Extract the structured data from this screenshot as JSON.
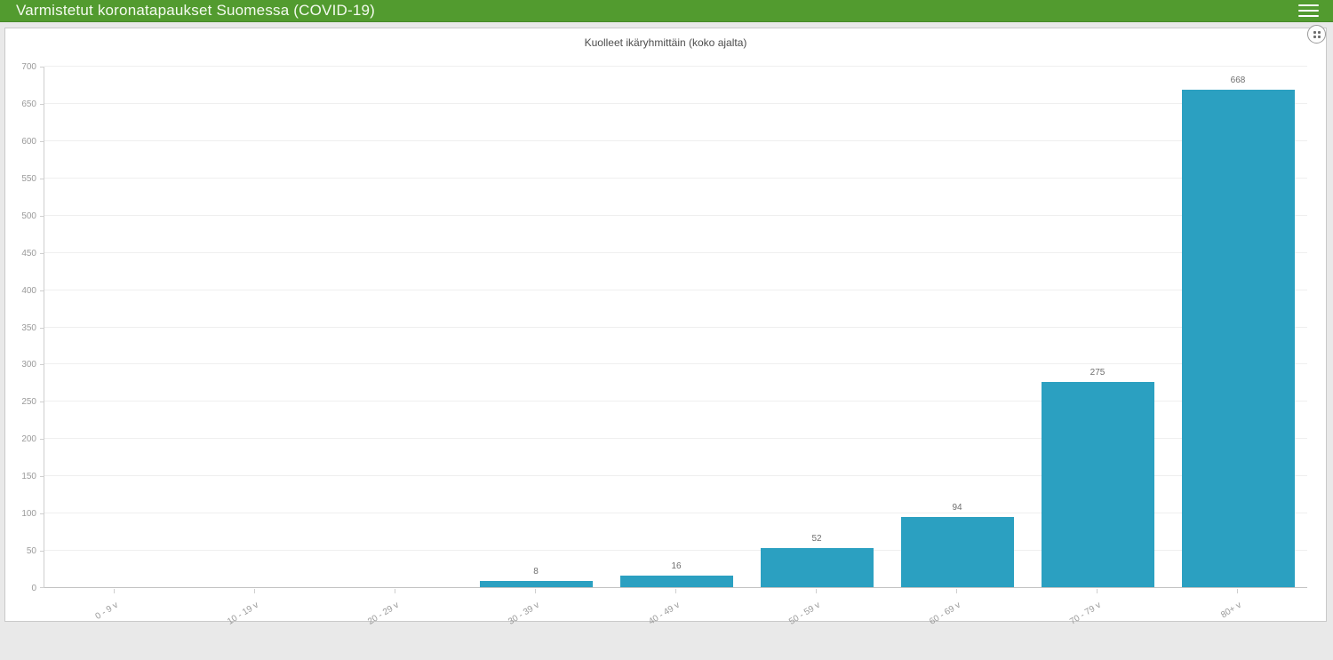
{
  "header": {
    "title": "Varmistetut koronatapaukset Suomessa (COVID-19)",
    "background": "#529b2f",
    "menu_icon": "hamburger-icon"
  },
  "card": {
    "corner_icon": "drag-handle-dots-icon"
  },
  "chart_data": {
    "type": "bar",
    "title": "Kuolleet ikäryhmittäin (koko ajalta)",
    "categories": [
      "0 - 9 v",
      "10 - 19 v",
      "20 - 29 v",
      "30 - 39 v",
      "40 - 49 v",
      "50 - 59 v",
      "60 - 69 v",
      "70 - 79 v",
      "80+ v"
    ],
    "values": [
      0,
      0,
      0,
      8,
      16,
      52,
      94,
      275,
      668
    ],
    "xlabel": "",
    "ylabel": "",
    "ylim": [
      0,
      700
    ],
    "ytick_step": 50,
    "bar_color": "#2ba0c1",
    "grid": true,
    "legend": false,
    "value_labels_shown_for_nonzero_bars": true
  }
}
